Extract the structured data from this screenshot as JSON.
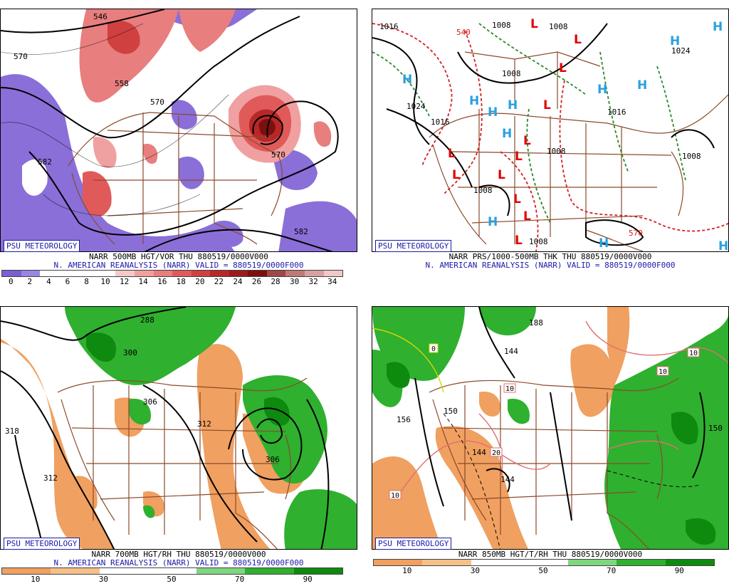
{
  "panels": {
    "p1": {
      "badge": "PSU METEOROLOGY",
      "caption1": "NARR 500MB HGT/VOR THU 880519/0000V000",
      "caption2": "N. AMERICAN REANALYSIS (NARR) VALID = 880519/0000F000",
      "labels": [
        "546",
        "570",
        "558",
        "570",
        "582",
        "570",
        "582"
      ],
      "scale_ticks": [
        "0",
        "2",
        "4",
        "6",
        "8",
        "10",
        "12",
        "14",
        "16",
        "18",
        "20",
        "22",
        "24",
        "26",
        "28",
        "30",
        "32",
        "34"
      ],
      "scale_colors": [
        "#7a60d0",
        "#9a86e0",
        "#ffffff",
        "#ffffff",
        "#ffffff",
        "#ffffff",
        "#f6c8c8",
        "#f0a0a0",
        "#e87e7e",
        "#e05a5a",
        "#d04040",
        "#b82828",
        "#9c1a1a",
        "#7c1010",
        "#a04848",
        "#c07878",
        "#d8a0a0",
        "#f0c8c8"
      ]
    },
    "p2": {
      "badge": "PSU METEOROLOGY",
      "caption1": "NARR PRS/1000-500MB THK THU 880519/0000V000",
      "caption2": "N. AMERICAN REANALYSIS (NARR) VALID = 880519/0000F000",
      "labels": [
        "1016",
        "1008",
        "1008",
        "1024",
        "1016",
        "1008",
        "1008",
        "1008",
        "1016",
        "1008",
        "1008",
        "1024",
        "540",
        "570"
      ],
      "centers": [
        "L",
        "L",
        "L",
        "L",
        "L",
        "L",
        "L",
        "L",
        "L",
        "L",
        "L",
        "L",
        "H",
        "H",
        "H",
        "H",
        "H",
        "H",
        "H",
        "H",
        "H",
        "H",
        "H",
        "H"
      ]
    },
    "p3": {
      "badge": "PSU METEOROLOGY",
      "caption1": "NARR 700MB HGT/RH THU 880519/0000V000",
      "caption2": "N. AMERICAN REANALYSIS (NARR) VALID = 880519/0000F000",
      "labels": [
        "318",
        "312",
        "300",
        "306",
        "312",
        "306",
        "288"
      ],
      "scale_ticks": [
        "10",
        "30",
        "50",
        "70",
        "90"
      ],
      "scale_colors": [
        "#f0a060",
        "#f5c08a",
        "#ffffff",
        "#ffffff",
        "#7fd67f",
        "#2fb02f",
        "#0e8a0e"
      ]
    },
    "p4": {
      "badge": "PSU METEOROLOGY",
      "caption1": "NARR 850MB HGT/T/RH THU 880519/0000V000",
      "labels": [
        "188",
        "144",
        "156",
        "150",
        "144",
        "144",
        "150",
        "0",
        "10",
        "10",
        "10",
        "20",
        "10"
      ],
      "scale_ticks": [
        "10",
        "30",
        "50",
        "70",
        "90"
      ],
      "scale_colors": [
        "#f0a060",
        "#f5c08a",
        "#ffffff",
        "#ffffff",
        "#7fd67f",
        "#2fb02f",
        "#0e8a0e"
      ]
    }
  },
  "colors": {
    "vort_purple": "#8a6fd8",
    "vort_red": "#e05a5a",
    "rh_dry": "#f0a060",
    "rh_moist": "#2fb02f",
    "low_marker": "#e00000",
    "high_marker": "#2aa0e0",
    "geo_lines": "#8b4a2b"
  }
}
